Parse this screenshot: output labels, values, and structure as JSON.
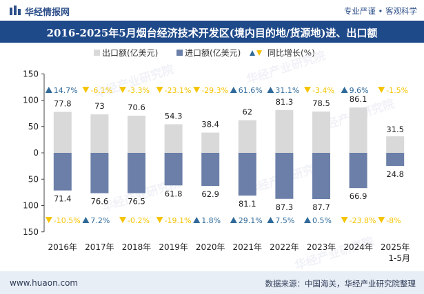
{
  "header": {
    "brand": "华经情报网",
    "tagline": "专业严谨 • 客观科学",
    "title": "2016-2025年5月烟台经济技术开发区(境内目的地/货源地)进、出口额"
  },
  "footer": {
    "site": "www.huaon.com",
    "source": "数据来源：中国海关，华经产业研究院整理"
  },
  "watermark": "华经产业研究院",
  "colors": {
    "export": "#d9d9d9",
    "import": "#6b7fa8",
    "growth_up": "#2f6a9a",
    "growth_down": "#f5c400",
    "title_bg": "#1f4a8a",
    "footer_bg": "#e8eef6"
  },
  "chart_data": {
    "type": "bar",
    "categories": [
      "2016年",
      "2017年",
      "2018年",
      "2019年",
      "2020年",
      "2021年",
      "2022年",
      "2023年",
      "2024年",
      "2025年\n1-5月"
    ],
    "ylim": [
      -150,
      150
    ],
    "yticks": [
      150,
      100,
      50,
      0,
      50,
      100,
      150
    ],
    "legend": [
      "出口额(亿美元)",
      "进口额(亿美元)",
      "同比增长(%)"
    ],
    "legend_position": "top",
    "series": [
      {
        "name": "出口额(亿美元)",
        "values": [
          77.8,
          73,
          70.6,
          54.3,
          38.4,
          62,
          81.3,
          78.5,
          86.1,
          31.5
        ],
        "growth": [
          "14.7%",
          "-6.1%",
          "-3.3%",
          "-23.1%",
          "-29.3%",
          "61.6%",
          "31.1%",
          "-3.4%",
          "9.6%",
          "-1.5%"
        ]
      },
      {
        "name": "进口额(亿美元)",
        "values": [
          71.4,
          76.6,
          76.5,
          61.8,
          62.9,
          81.1,
          87.3,
          87.7,
          66.9,
          24.8
        ],
        "growth": [
          "-10.5%",
          "7.2%",
          "-0.2%",
          "-19.1%",
          "1.8%",
          "29.1%",
          "7.5%",
          "0.5%",
          "-23.8%",
          "-8%"
        ]
      }
    ]
  }
}
